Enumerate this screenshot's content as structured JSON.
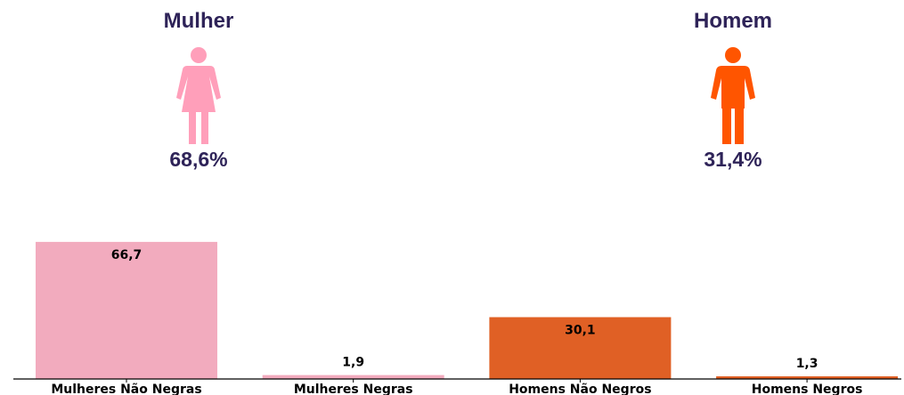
{
  "panels": [
    {
      "title": "Mulher",
      "percent": "68,6%",
      "icon": "woman-icon",
      "color": "#ff9fba"
    },
    {
      "title": "Homem",
      "percent": "31,4%",
      "icon": "man-icon",
      "color": "#ff5500"
    }
  ],
  "chart_data": {
    "type": "bar",
    "categories": [
      "Mulheres Não Negras",
      "Mulheres Negras",
      "Homens Não Negros",
      "Homens Negros"
    ],
    "values": [
      66.7,
      1.9,
      30.1,
      1.3
    ],
    "value_labels": [
      "66,7",
      "1,9",
      "30,1",
      "1,3"
    ],
    "colors": [
      "#f2abbe",
      "#f2abbe",
      "#e06025",
      "#e06025"
    ],
    "ylim": [
      0,
      100
    ],
    "grid": false
  }
}
